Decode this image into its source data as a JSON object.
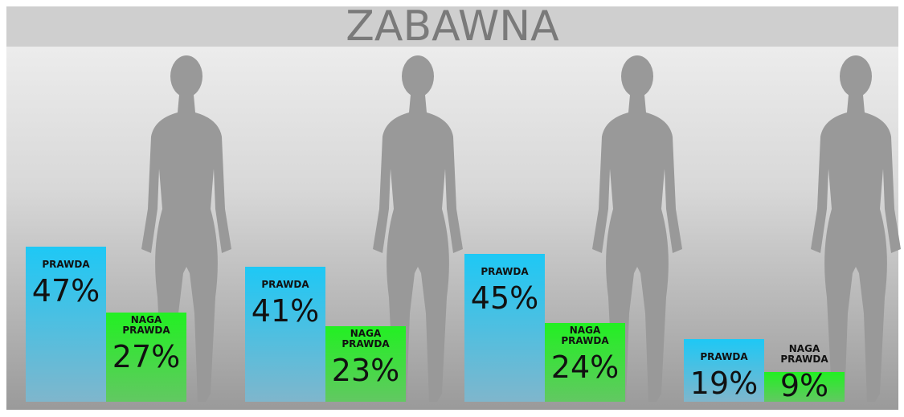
{
  "chart_data": {
    "type": "bar",
    "title": "ZABAWNA",
    "categories": [
      null,
      null,
      null,
      null
    ],
    "series": [
      {
        "name": "PRAWDA",
        "color": "#1ec8f5",
        "values": [
          47,
          41,
          45,
          19
        ],
        "value_labels": [
          "47%",
          "41%",
          "45%",
          "19%"
        ]
      },
      {
        "name": "NAGA PRAWDA",
        "color": "#22f022",
        "values": [
          27,
          23,
          24,
          9
        ],
        "value_labels": [
          "27%",
          "23%",
          "24%",
          "9%"
        ]
      }
    ]
  }
}
